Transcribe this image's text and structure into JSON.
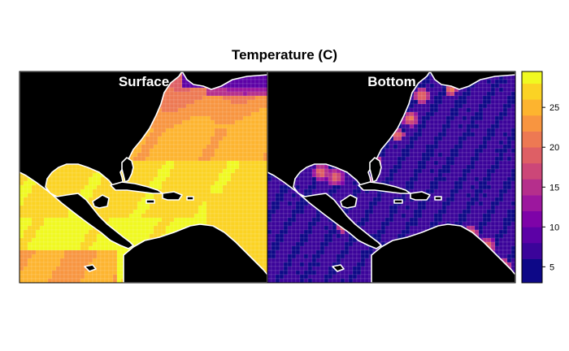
{
  "title": "Temperature (C)",
  "panels": [
    {
      "label": "Surface"
    },
    {
      "label": "Bottom"
    }
  ],
  "colorbar": {
    "ticks": [
      "5",
      "10",
      "15",
      "20",
      "25"
    ],
    "tick_values": [
      5,
      10,
      15,
      20,
      25
    ],
    "range": [
      3,
      29.5
    ],
    "breaks": [
      3,
      6,
      8,
      10,
      12,
      14,
      16,
      18,
      20,
      22,
      24,
      26,
      28,
      29.5
    ],
    "colors": [
      "#0d0887",
      "#3b049a",
      "#5c01a6",
      "#7e03a8",
      "#9c179e",
      "#b52f8c",
      "#cc4778",
      "#de5f65",
      "#ed7953",
      "#f89540",
      "#fdb42f",
      "#fbd324",
      "#f0f921"
    ]
  },
  "colors": {
    "land": "#000000",
    "coast": "#ffffff",
    "grid": "#ffffff"
  }
}
